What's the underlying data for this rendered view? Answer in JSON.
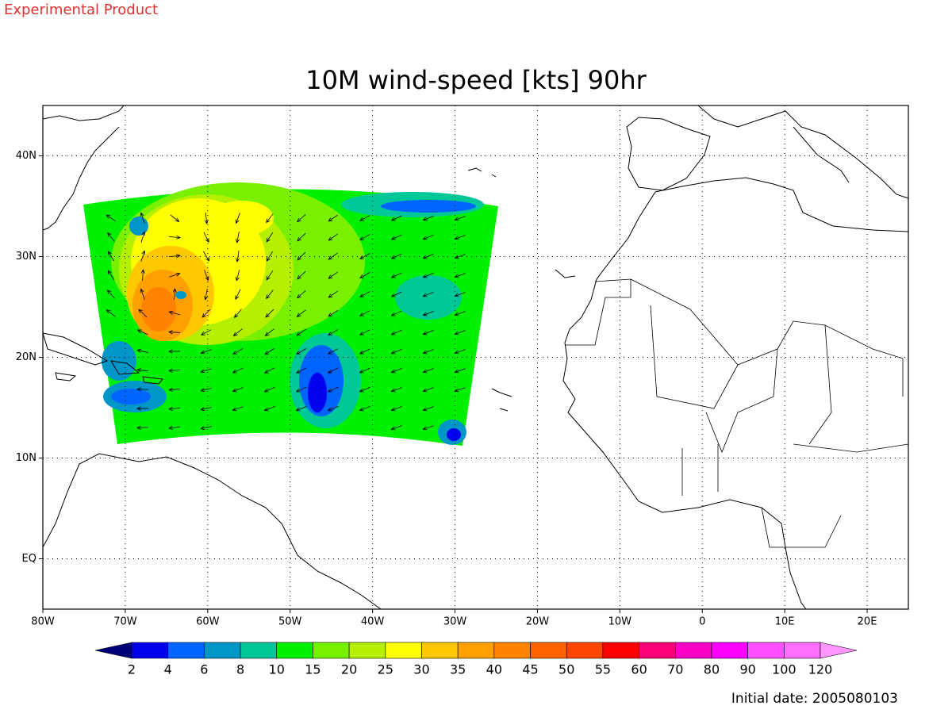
{
  "header": {
    "label": "Experimental Product"
  },
  "map": {
    "title": "10M wind-speed [kts] 90hr",
    "xlim": [
      -80,
      25
    ],
    "ylim": [
      -5,
      45
    ],
    "xticks": [
      {
        "value": -80,
        "label": "80W"
      },
      {
        "value": -70,
        "label": "70W"
      },
      {
        "value": -60,
        "label": "60W"
      },
      {
        "value": -50,
        "label": "50W"
      },
      {
        "value": -40,
        "label": "40W"
      },
      {
        "value": -30,
        "label": "30W"
      },
      {
        "value": -20,
        "label": "20W"
      },
      {
        "value": -10,
        "label": "10W"
      },
      0,
      {
        "value": 10,
        "label": "10E"
      },
      {
        "value": 20,
        "label": "20E"
      }
    ],
    "yticks": [
      {
        "value": 0,
        "label": "EQ"
      },
      {
        "value": 10,
        "label": "10N"
      },
      {
        "value": 20,
        "label": "20N"
      },
      {
        "value": 30,
        "label": "30N"
      },
      {
        "value": 40,
        "label": "40N"
      }
    ],
    "grid": true
  },
  "colorbar": {
    "levels": [
      2,
      4,
      6,
      8,
      10,
      15,
      20,
      25,
      30,
      35,
      40,
      45,
      50,
      55,
      60,
      70,
      80,
      90,
      100,
      120
    ],
    "colors": [
      "#00007a",
      "#0000f0",
      "#0064ff",
      "#0096c8",
      "#00c896",
      "#00f000",
      "#78f000",
      "#b4f000",
      "#ffff00",
      "#ffc800",
      "#ffa000",
      "#ff8200",
      "#ff6400",
      "#ff4600",
      "#ff0000",
      "#ff0078",
      "#ff00c8",
      "#ff00ff",
      "#ff50ff",
      "#ff6eff",
      "#ff96ff"
    ]
  },
  "footer": {
    "label": "Initial date: 2005080103"
  }
}
